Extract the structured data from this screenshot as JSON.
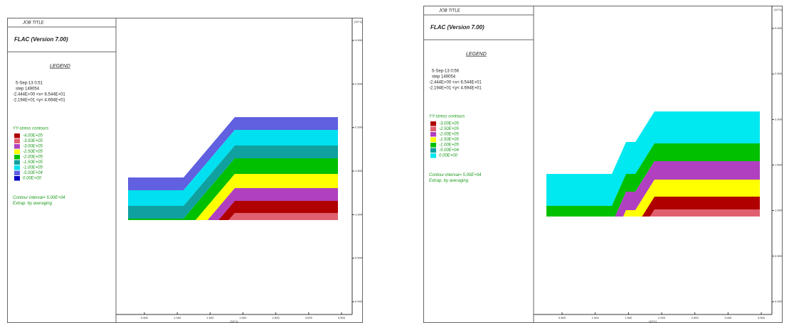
{
  "panels": [
    {
      "job_title": "JOB TITLE",
      "program": "FLAC (Version 7.00)",
      "legend_title": "LEGEND",
      "date": "5-Sep-13  0:51",
      "step": "step   149054",
      "x_range": "-2.444E+00 <x< 6.544E+01",
      "y_range": "-2.194E+01 <y< 4.694E+01",
      "contour_title": "YY-stress contours",
      "legend_items": [
        {
          "label": "-4.00E+05",
          "color": "#b00000"
        },
        {
          "label": "-3.50E+05",
          "color": "#e06070"
        },
        {
          "label": "-3.00E+05",
          "color": "#b040c0"
        },
        {
          "label": "-2.50E+05",
          "color": "#ffff00"
        },
        {
          "label": "-2.00E+05",
          "color": "#00c000"
        },
        {
          "label": "-1.50E+05",
          "color": "#10a0a0"
        },
        {
          "label": "-1.00E+05",
          "color": "#00e0f0"
        },
        {
          "label": "-5.00E+04",
          "color": "#6060e0"
        },
        {
          "label": "0.00E+00",
          "color": "#0000c0"
        }
      ],
      "interval": "Contour interval= 5.00E+04",
      "extrap": "Extrap. by averaging",
      "y_unit": "(10^1)",
      "y_ticks": [
        "3.000",
        "2.500",
        "2.000",
        "1.500",
        "1.000",
        "0.500",
        "0.000"
      ],
      "x_unit": "(10^1)",
      "x_ticks": [
        "0.500",
        "1.000",
        "1.500",
        "2.000",
        "2.500",
        "3.000",
        "3.500"
      ]
    },
    {
      "job_title": "JOB TITLE",
      "program": "FLAC (Version 7.00)",
      "legend_title": "LEGEND",
      "date": "5-Sep-13  0:56",
      "step": "step   149054",
      "x_range": "-2.444E+00 <x< 6.544E+01",
      "y_range": "-2.194E+01 <y< 4.694E+01",
      "contour_title": "YY-stress contours",
      "legend_items": [
        {
          "label": "-3.00E+05",
          "color": "#b00000"
        },
        {
          "label": "-2.50E+05",
          "color": "#e06070"
        },
        {
          "label": "-2.00E+05",
          "color": "#b040c0"
        },
        {
          "label": "-1.50E+05",
          "color": "#ffff00"
        },
        {
          "label": "-1.00E+05",
          "color": "#00c000"
        },
        {
          "label": "-5.00E+04",
          "color": "#10a0a0"
        },
        {
          "label": "0.00E+00",
          "color": "#00e8f0"
        }
      ],
      "interval": "Contour interval= 5.00E+04",
      "extrap": "Extrap. by averaging",
      "y_unit": "(10^1)",
      "y_ticks": [
        "3.000",
        "2.500",
        "2.000",
        "1.500",
        "1.000",
        "0.500",
        "0.000"
      ],
      "x_unit": "(10^1)",
      "x_ticks": [
        "0.500",
        "1.000",
        "1.500",
        "2.000",
        "2.500",
        "3.000",
        "3.500"
      ]
    }
  ]
}
